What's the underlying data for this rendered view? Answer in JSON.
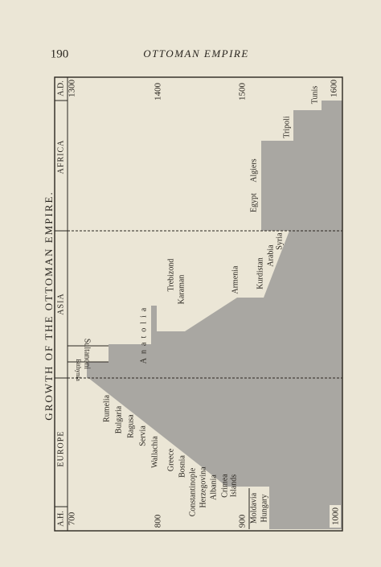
{
  "header": {
    "page_number": "190",
    "running_title": "OTTOMAN EMPIRE"
  },
  "figure": {
    "title": "GROWTH OF THE OTTOMAN EMPIRE.",
    "ah_label": "A.H.",
    "ad_label": "A.D.",
    "regions": [
      "EUROPE",
      "ASIA",
      "AFRICA"
    ],
    "ah_ticks": [
      "700",
      "800",
      "900",
      "1000"
    ],
    "ad_ticks": [
      "1300",
      "1400",
      "1500",
      "1600"
    ],
    "labels": [
      "Bithynia",
      "Sultanoni",
      "Anatolia",
      "Rumelia",
      "Bulgaria",
      "Ragusa",
      "Servia",
      "Wallachia",
      "Greece",
      "Bosnia",
      "Constantinople",
      "Herzegovina",
      "Albania",
      "Crimea",
      "Islands",
      "Moldavia",
      "Hungary",
      "Trebizond",
      "Karaman",
      "Armenia",
      "Kurdistan",
      "Arabia",
      "Syria",
      "Egypt",
      "Algiers",
      "Tripoli",
      "Tunis"
    ]
  }
}
